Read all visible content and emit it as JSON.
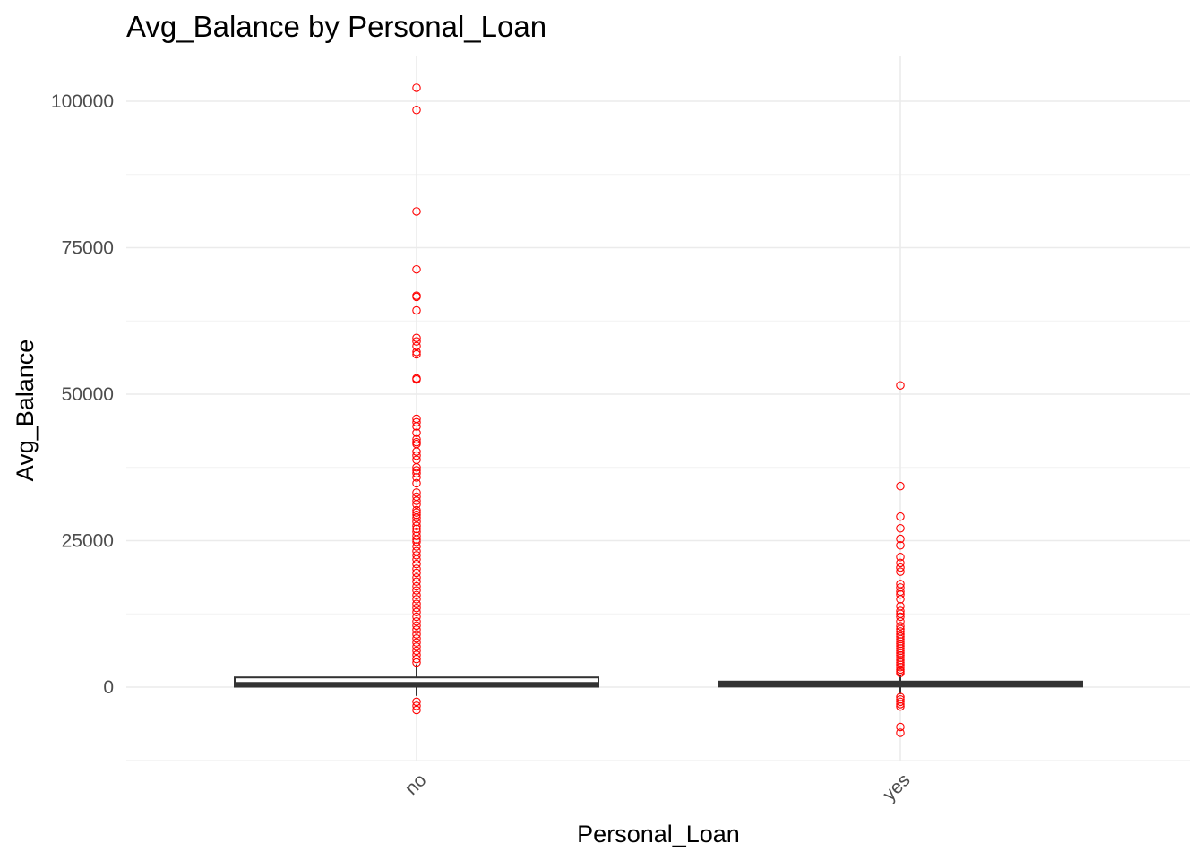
{
  "chart_data": {
    "type": "boxplot",
    "title": "Avg_Balance by Personal_Loan",
    "xlabel": "Personal_Loan",
    "ylabel": "Avg_Balance",
    "ylim": [
      -13000,
      108000
    ],
    "yticks": [
      0,
      25000,
      50000,
      75000,
      100000
    ],
    "ytick_labels": [
      "0",
      "25000",
      "50000",
      "75000",
      "100000"
    ],
    "grid": true,
    "legend": "none",
    "colors": {
      "box_outline": "#333333",
      "outlier": "#ff0000",
      "grid": "#ebebeb"
    },
    "categories": [
      "no",
      "yes"
    ],
    "boxes": [
      {
        "category": "no",
        "q1": 75,
        "median": 500,
        "q3": 1650,
        "whisker_low": -1500,
        "whisker_high": 3900,
        "outliers": [
          102300,
          98500,
          81200,
          71300,
          66800,
          66600,
          64300,
          59600,
          59000,
          58200,
          57200,
          56800,
          52700,
          52500,
          45800,
          45200,
          44500,
          43400,
          42300,
          41800,
          41500,
          40200,
          39500,
          38800,
          37500,
          37000,
          36500,
          35800,
          34800,
          33200,
          32500,
          31800,
          31200,
          30200,
          29800,
          29400,
          28900,
          28200,
          27500,
          27000,
          26500,
          25800,
          25200,
          24800,
          24000,
          23200,
          22500,
          21800,
          21000,
          20200,
          19500,
          18700,
          18000,
          17200,
          16500,
          15700,
          15000,
          14200,
          13500,
          12800,
          12000,
          11200,
          10500,
          9800,
          9000,
          8300,
          7600,
          6900,
          6200,
          5500,
          4800,
          4200,
          -2500,
          -3200,
          -3900
        ]
      },
      {
        "category": "yes",
        "q1": 100,
        "median": 450,
        "q3": 950,
        "whisker_low": -1200,
        "whisker_high": 2100,
        "outliers": [
          51500,
          34300,
          29100,
          27100,
          25300,
          24200,
          22200,
          21200,
          20400,
          19700,
          17600,
          17000,
          16300,
          15800,
          15000,
          13800,
          13000,
          12500,
          12000,
          11200,
          10400,
          9900,
          9500,
          9000,
          8600,
          8200,
          7800,
          7400,
          7000,
          6600,
          6200,
          5800,
          5400,
          5000,
          4600,
          4200,
          3800,
          3400,
          3000,
          2700,
          2400,
          -1700,
          -2100,
          -2500,
          -2900,
          -3300,
          -6800,
          -7800
        ]
      }
    ]
  }
}
